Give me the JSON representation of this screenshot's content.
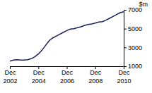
{
  "chart_data": {
    "type": "line",
    "y_label": "$m",
    "categories": [
      "Dec 2002",
      null,
      null,
      null,
      null,
      null,
      null,
      null,
      "Dec 2004",
      null,
      null,
      null,
      null,
      null,
      null,
      null,
      "Dec 2006",
      null,
      null,
      null,
      null,
      null,
      null,
      null,
      "Dec 2008",
      null,
      null,
      null,
      null,
      null,
      null,
      null,
      "Dec 2010"
    ],
    "values": [
      1550,
      1650,
      1700,
      1650,
      1650,
      1700,
      1800,
      2000,
      2300,
      2700,
      3200,
      3700,
      4000,
      4200,
      4400,
      4600,
      4800,
      4950,
      5000,
      5100,
      5200,
      5350,
      5450,
      5500,
      5600,
      5700,
      5750,
      5900,
      6100,
      6300,
      6500,
      6700,
      6800
    ],
    "color": "#1a1f5c",
    "ylim": [
      1000,
      7000
    ],
    "yticks": [
      1000,
      3000,
      5000,
      7000
    ],
    "grid": false
  }
}
